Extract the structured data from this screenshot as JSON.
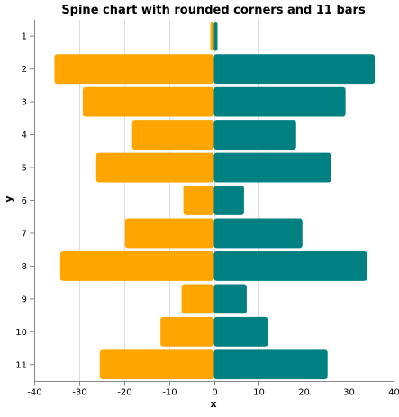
{
  "chart_data": {
    "type": "bar",
    "orientation": "horizontal",
    "layout": "spine",
    "title": "Spine chart with rounded corners and 11 bars",
    "xlabel": "x",
    "ylabel": "y",
    "xlim": [
      -40,
      40
    ],
    "xticks": [
      -40,
      -30,
      -20,
      -10,
      0,
      10,
      20,
      30,
      40
    ],
    "grid": true,
    "legend": "none",
    "categories": [
      "1",
      "2",
      "3",
      "4",
      "5",
      "6",
      "7",
      "8",
      "9",
      "10",
      "11"
    ],
    "series": [
      {
        "color": "#ffa500",
        "values": [
          -0.8,
          -35.5,
          -29.2,
          -18.2,
          -26.2,
          -6.8,
          -19.8,
          -34.2,
          -7.2,
          -11.9,
          -25.4
        ]
      },
      {
        "color": "#008080",
        "values": [
          0.8,
          35.8,
          29.3,
          18.3,
          26.1,
          6.7,
          19.7,
          34.1,
          7.3,
          12.0,
          25.3
        ]
      }
    ]
  }
}
